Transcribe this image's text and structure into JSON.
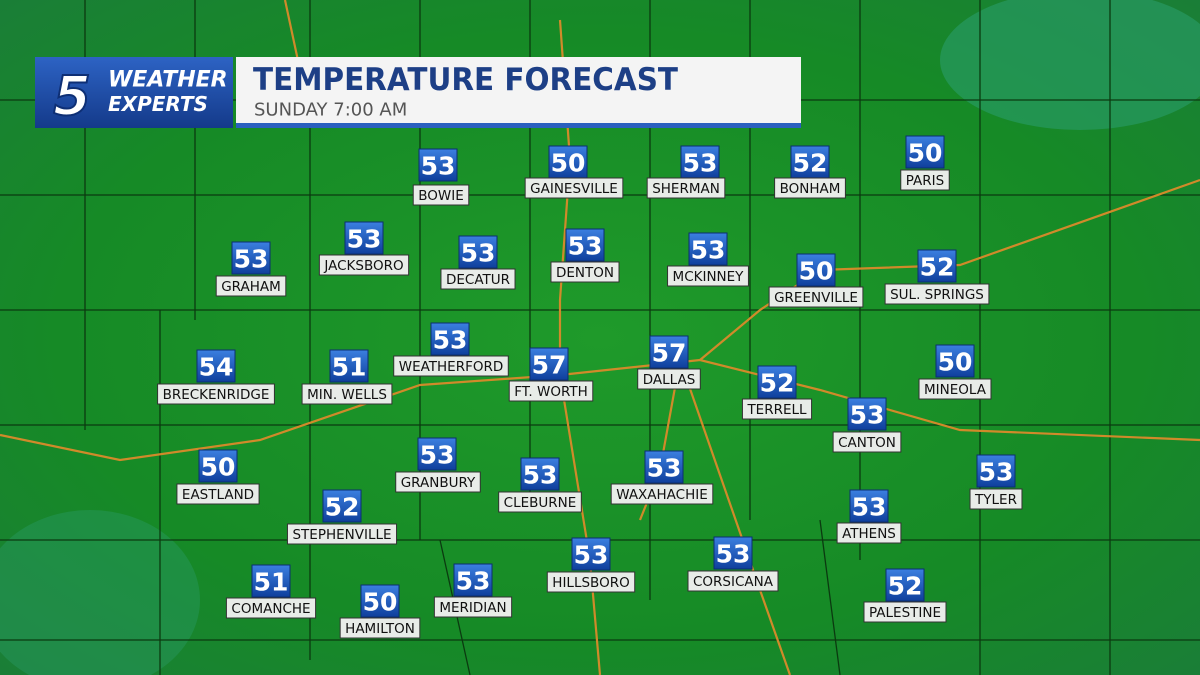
{
  "logo": {
    "number": "5",
    "line1": "WEATHER",
    "line2": "EXPERTS"
  },
  "header": {
    "title": "TEMPERATURE FORECAST",
    "subtitle": "SUNDAY 7:00 AM"
  },
  "cities": [
    {
      "name": "BOWIE",
      "temp": 53
    },
    {
      "name": "GAINESVILLE",
      "temp": 50
    },
    {
      "name": "SHERMAN",
      "temp": 53
    },
    {
      "name": "BONHAM",
      "temp": 52
    },
    {
      "name": "PARIS",
      "temp": 50
    },
    {
      "name": "GRAHAM",
      "temp": 53
    },
    {
      "name": "JACKSBORO",
      "temp": 53
    },
    {
      "name": "DECATUR",
      "temp": 53
    },
    {
      "name": "DENTON",
      "temp": 53
    },
    {
      "name": "MCKINNEY",
      "temp": 53
    },
    {
      "name": "GREENVILLE",
      "temp": 50
    },
    {
      "name": "SUL. SPRINGS",
      "temp": 52
    },
    {
      "name": "BRECKENRIDGE",
      "temp": 54
    },
    {
      "name": "MIN. WELLS",
      "temp": 51
    },
    {
      "name": "WEATHERFORD",
      "temp": 53
    },
    {
      "name": "FT. WORTH",
      "temp": 57
    },
    {
      "name": "DALLAS",
      "temp": 57
    },
    {
      "name": "TERRELL",
      "temp": 52
    },
    {
      "name": "MINEOLA",
      "temp": 50
    },
    {
      "name": "CANTON",
      "temp": 53
    },
    {
      "name": "EASTLAND",
      "temp": 50
    },
    {
      "name": "GRANBURY",
      "temp": 53
    },
    {
      "name": "CLEBURNE",
      "temp": 53
    },
    {
      "name": "WAXAHACHIE",
      "temp": 53
    },
    {
      "name": "TYLER",
      "temp": 53
    },
    {
      "name": "STEPHENVILLE",
      "temp": 52
    },
    {
      "name": "ATHENS",
      "temp": 53
    },
    {
      "name": "HILLSBORO",
      "temp": 53
    },
    {
      "name": "CORSICANA",
      "temp": 53
    },
    {
      "name": "COMANCHE",
      "temp": 51
    },
    {
      "name": "HAMILTON",
      "temp": 50
    },
    {
      "name": "MERIDIAN",
      "temp": 53
    },
    {
      "name": "PALESTINE",
      "temp": 52
    }
  ]
}
